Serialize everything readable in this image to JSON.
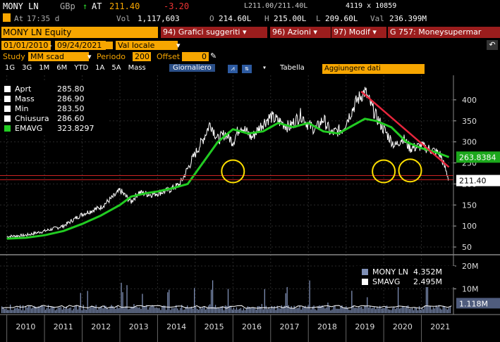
{
  "top": {
    "ticker": "MONY LN",
    "currency": "GBp",
    "at_label": "AT",
    "last": "211.40",
    "change": "-3.20",
    "time_label": "At",
    "time": "17:35 d",
    "vol_label": "Vol",
    "volume": "1,117,603",
    "open_label": "O",
    "open": "214.60L",
    "high_label": "H",
    "high": "215.00L",
    "low_label": "L",
    "low": "209.60L",
    "val_label": "Val",
    "value": "236.399M",
    "bidask": "L211.00/211.40L",
    "size": "4119 x 10859"
  },
  "security_bar": {
    "security": "MONY LN Equity",
    "menus": [
      "94) Grafici suggeriti ▾",
      "96) Azioni ▾",
      "97) Modif ▾"
    ],
    "title": "G 757: Moneysupermar"
  },
  "controls": {
    "start_date": "01/01/2010",
    "end_date": "09/24/2021",
    "currency_sel": "Val locale",
    "study_label": "Study",
    "study_val": "MM scad",
    "period_label": "Periodo",
    "period_val": "200",
    "offset_label": "Offset",
    "offset_val": "0"
  },
  "ranges": {
    "items": [
      "1G",
      "3G",
      "1M",
      "6M",
      "YTD",
      "1A",
      "5A",
      "Mass"
    ],
    "freq": "Giornaliero",
    "table": "Tabella",
    "add_data": "Aggiungere dati"
  },
  "legend_price": {
    "rows": [
      {
        "label": "Aprt",
        "value": "285.80"
      },
      {
        "label": "Mass",
        "value": "286.90"
      },
      {
        "label": "Min",
        "value": "283.50"
      },
      {
        "label": "Chiusura",
        "value": "286.60"
      },
      {
        "label": "EMAVG",
        "value": "323.8297"
      }
    ]
  },
  "legend_vol": {
    "rows": [
      {
        "label": "MONY LN",
        "value": "4.352M"
      },
      {
        "label": "SMAVG",
        "value": "2.495M"
      }
    ]
  },
  "colors": {
    "price": "#ffffff",
    "emavg": "#22cc22",
    "trend": "#e8263d",
    "circle": "#ffe000",
    "support": "#cc2222",
    "volume": "#7f8fb5",
    "smavg": "#ffffff"
  },
  "chart_data": {
    "type": "line",
    "x_unit": "year",
    "xlabels": [
      "2010",
      "2011",
      "2012",
      "2013",
      "2014",
      "2015",
      "2016",
      "2017",
      "2018",
      "2019",
      "2020",
      "2021"
    ],
    "price_ylim": [
      40,
      450
    ],
    "price_ticks": [
      "400",
      "350",
      "300",
      "250",
      "200",
      "150",
      "100",
      "50"
    ],
    "last_price_label": "211.40",
    "emavg_label": "263.8384",
    "volume_ticks": [
      "20M",
      "10M"
    ],
    "volume_last_label": "1.118M",
    "series": [
      {
        "name": "MONY LN",
        "x": [
          2010.0,
          2010.5,
          2011.0,
          2011.5,
          2012.0,
          2012.5,
          2012.9,
          2013.0,
          2013.3,
          2013.5,
          2013.8,
          2014.0,
          2014.3,
          2014.6,
          2014.9,
          2015.2,
          2015.4,
          2015.6,
          2015.8,
          2016.0,
          2016.2,
          2016.5,
          2016.8,
          2017.0,
          2017.3,
          2017.5,
          2017.8,
          2018.0,
          2018.2,
          2018.4,
          2018.6,
          2018.9,
          2019.1,
          2019.3,
          2019.5,
          2019.8,
          2020.0,
          2020.3,
          2020.5,
          2020.7,
          2021.0,
          2021.3,
          2021.5,
          2021.73
        ],
        "y": [
          75,
          78,
          88,
          100,
          128,
          145,
          175,
          185,
          158,
          180,
          175,
          178,
          185,
          200,
          255,
          305,
          345,
          305,
          320,
          300,
          340,
          310,
          345,
          360,
          345,
          335,
          365,
          340,
          330,
          355,
          320,
          330,
          365,
          400,
          420,
          360,
          330,
          290,
          310,
          285,
          290,
          280,
          270,
          211
        ]
      },
      {
        "name": "EMAVG",
        "x": [
          2010.0,
          2010.5,
          2011.0,
          2011.5,
          2012.0,
          2012.5,
          2013.0,
          2013.3,
          2013.7,
          2014.0,
          2014.4,
          2014.8,
          2015.2,
          2015.6,
          2016.0,
          2016.4,
          2016.8,
          2017.2,
          2017.6,
          2018.0,
          2018.4,
          2018.8,
          2019.2,
          2019.5,
          2019.8,
          2020.2,
          2020.6,
          2021.0,
          2021.4,
          2021.73
        ],
        "y": [
          70,
          72,
          78,
          88,
          105,
          125,
          150,
          170,
          178,
          182,
          190,
          200,
          250,
          300,
          330,
          320,
          325,
          345,
          335,
          345,
          325,
          320,
          340,
          355,
          350,
          335,
          300,
          285,
          275,
          263.8
        ]
      }
    ],
    "trendline": {
      "x": [
        2019.4,
        2021.73
      ],
      "y": [
        420,
        240
      ]
    },
    "support_levels": [
      220,
      210
    ],
    "circles": [
      {
        "x": 2016.0,
        "y": 230
      },
      {
        "x": 2020.0,
        "y": 230
      },
      {
        "x": 2020.7,
        "y": 232
      }
    ]
  }
}
